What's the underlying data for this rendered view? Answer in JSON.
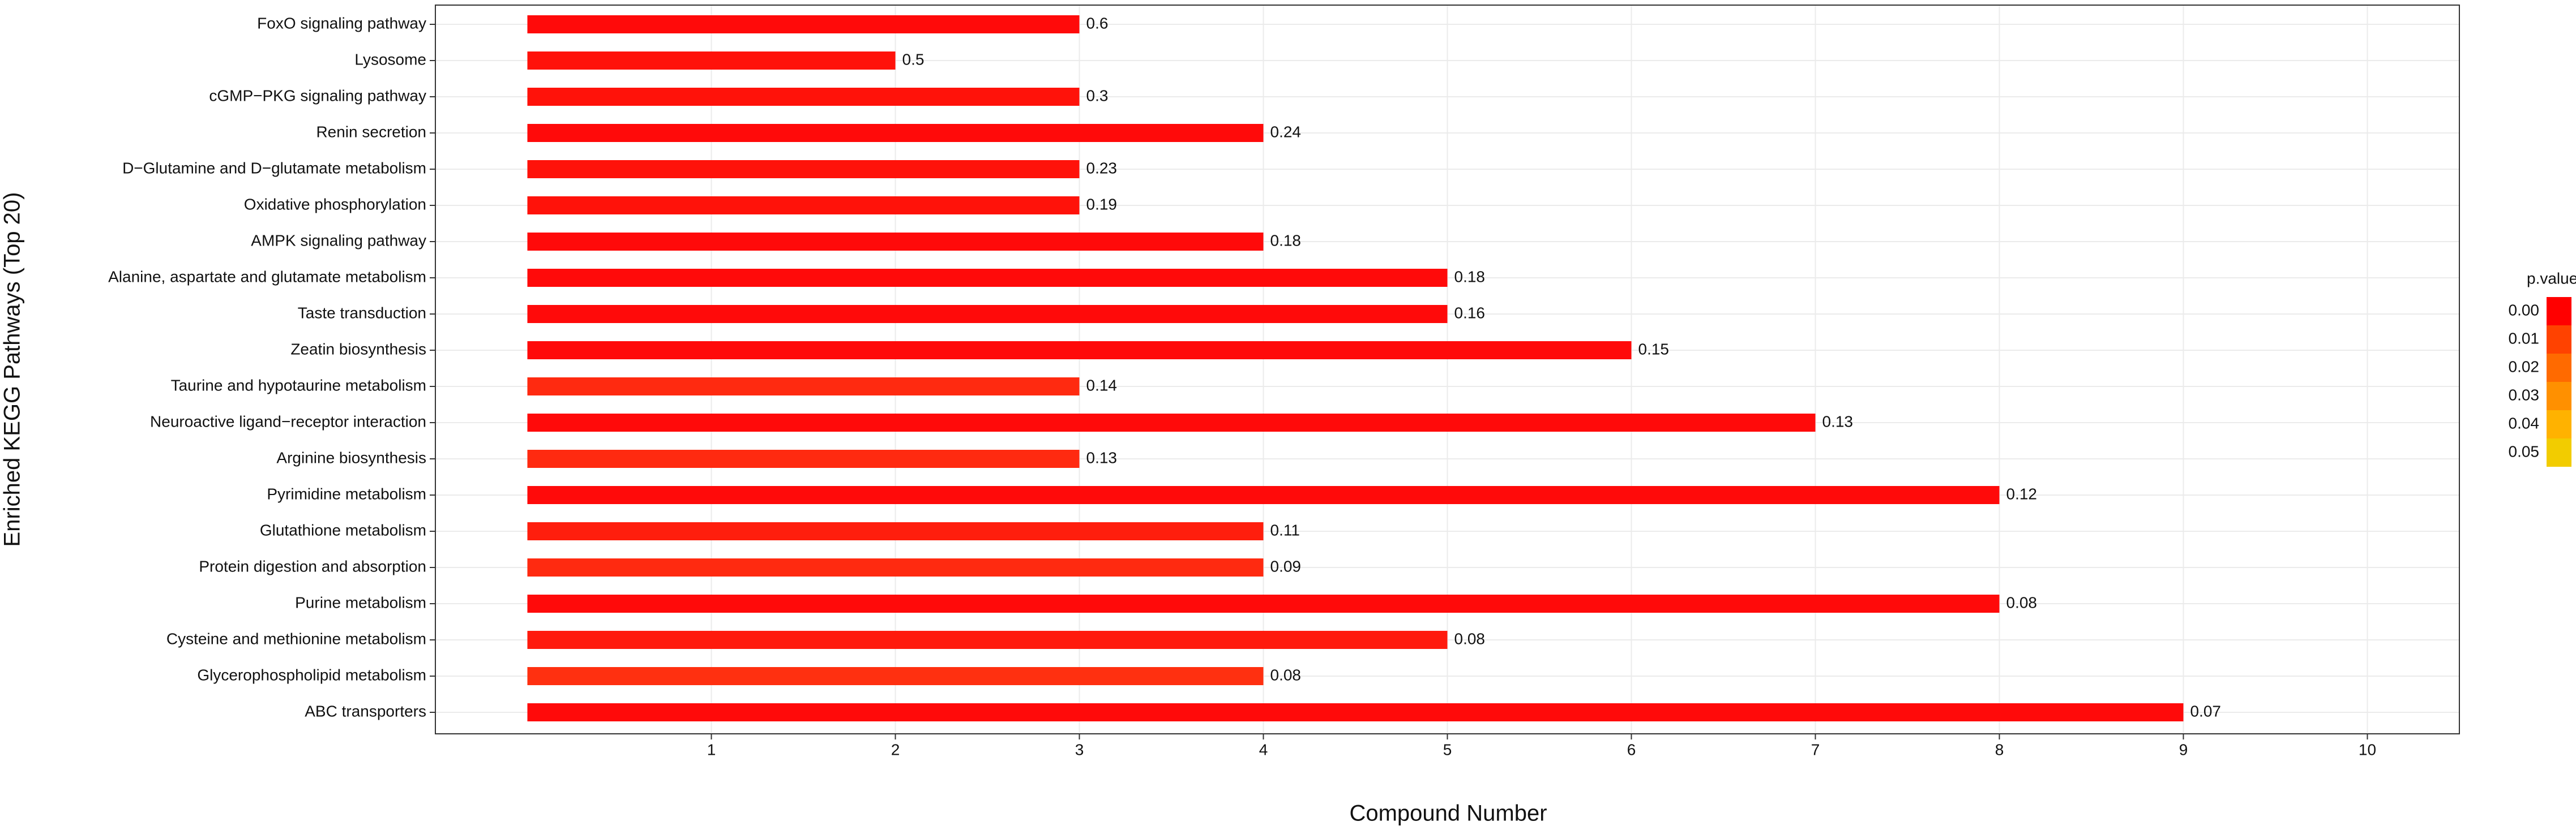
{
  "chart_data": {
    "type": "barh",
    "xlabel": "Compound Number",
    "ylabel": "Enriched KEGG Pathways (Top 20)",
    "categories": [
      "FoxO signaling pathway",
      "Lysosome",
      "cGMP−PKG signaling pathway",
      "Renin secretion",
      "D−Glutamine and D−glutamate metabolism",
      "Oxidative phosphorylation",
      "AMPK signaling pathway",
      "Alanine, aspartate and glutamate metabolism",
      "Taste transduction",
      "Zeatin biosynthesis",
      "Taurine and hypotaurine metabolism",
      "Neuroactive ligand−receptor interaction",
      "Arginine biosynthesis",
      "Pyrimidine metabolism",
      "Glutathione metabolism",
      "Protein digestion and absorption",
      "Purine metabolism",
      "Cysteine and methionine metabolism",
      "Glycerophospholipid metabolism",
      "ABC transporters"
    ],
    "values": [
      3,
      2,
      3,
      4,
      3,
      3,
      4,
      5,
      5,
      6,
      3,
      7,
      3,
      8,
      4,
      4,
      8,
      5,
      4,
      9
    ],
    "bar_labels": [
      0.6,
      0.5,
      0.3,
      0.24,
      0.23,
      0.19,
      0.18,
      0.18,
      0.16,
      0.15,
      0.14,
      0.13,
      0.13,
      0.12,
      0.11,
      0.09,
      0.08,
      0.08,
      0.08,
      0.07
    ],
    "colors": [
      "#ff0a0a",
      "#ff120a",
      "#ff120a",
      "#ff0a0a",
      "#ff120a",
      "#ff120a",
      "#ff0a0a",
      "#ff0a0a",
      "#ff0a0a",
      "#ff0a0a",
      "#ff2a10",
      "#ff0a0a",
      "#ff2a10",
      "#ff0a0a",
      "#ff1e0d",
      "#ff2a10",
      "#ff0a0a",
      "#ff1a0d",
      "#ff3010",
      "#ff0a0a"
    ],
    "xlim": [
      -0.5,
      10.5
    ],
    "xticks": [
      1,
      2,
      3,
      4,
      5,
      6,
      7,
      8,
      9,
      10
    ],
    "grid": true,
    "legend": {
      "title": "p.value",
      "ticks": [
        {
          "value": 0,
          "label": "0.00"
        },
        {
          "value": 0.01,
          "label": "0.01"
        },
        {
          "value": 0.02,
          "label": "0.02"
        },
        {
          "value": 0.03,
          "label": "0.03"
        },
        {
          "value": 0.04,
          "label": "0.04"
        },
        {
          "value": 0.05,
          "label": "0.05"
        }
      ],
      "colors": [
        "#ff0000",
        "#ff4200",
        "#ff6a00",
        "#ff9000",
        "#ffb200",
        "#f2cc00"
      ]
    }
  }
}
